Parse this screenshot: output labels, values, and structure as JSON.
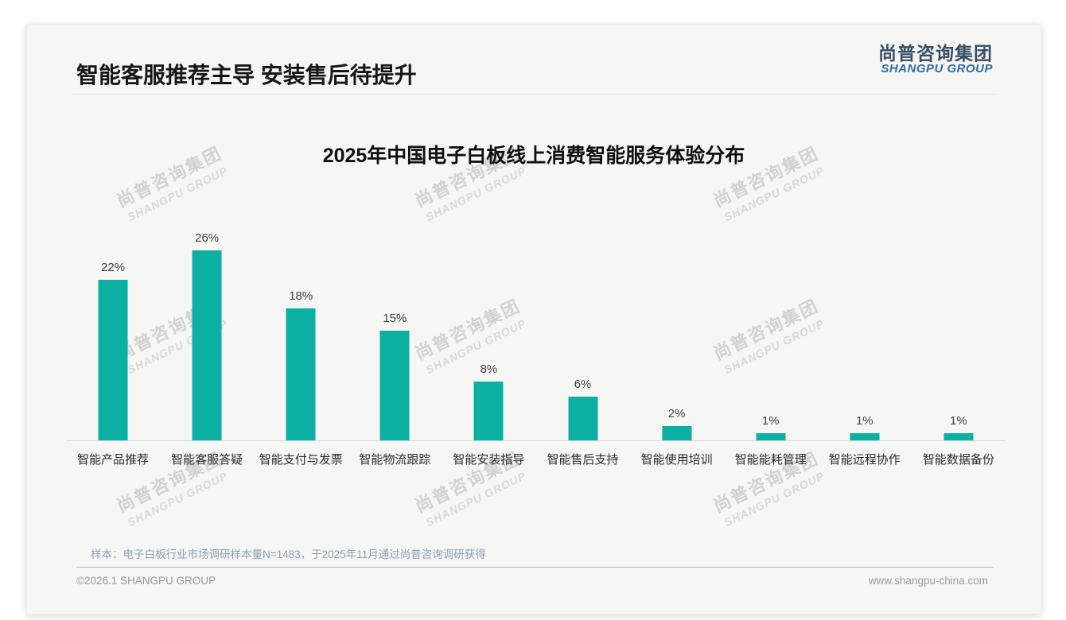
{
  "slide": {
    "header": {
      "title": "智能客服推荐主导 安装售后待提升",
      "logo_cn": "尚普咨询集团",
      "logo_en": "SHANGPU GROUP"
    },
    "watermark": {
      "line1": "尚普咨询集团",
      "line2": "SHANGPU GROUP"
    },
    "footnote": "样本：电子白板行业市场调研样本量N=1483，于2025年11月通过尚普咨询调研获得",
    "footer": {
      "copyright": "©2026.1 SHANGPU GROUP",
      "website": "www.shangpu-china.com"
    }
  },
  "chart_data": {
    "type": "bar",
    "title": "2025年中国电子白板线上消费智能服务体验分布",
    "categories": [
      "智能产品推荐",
      "智能客服答疑",
      "智能支付与发票",
      "智能物流跟踪",
      "智能安装指导",
      "智能售后支持",
      "智能使用培训",
      "智能能耗管理",
      "智能远程协作",
      "智能数据备份"
    ],
    "values": [
      22,
      26,
      18,
      15,
      8,
      6,
      2,
      1,
      1,
      1
    ],
    "labels": [
      "22%",
      "26%",
      "18%",
      "15%",
      "8%",
      "6%",
      "2%",
      "1%",
      "1%",
      "1%"
    ],
    "bar_color": "#0cb0a3",
    "xlabel": "",
    "ylabel": "",
    "ylim": [
      0,
      28
    ],
    "grid": false,
    "legend": false
  }
}
